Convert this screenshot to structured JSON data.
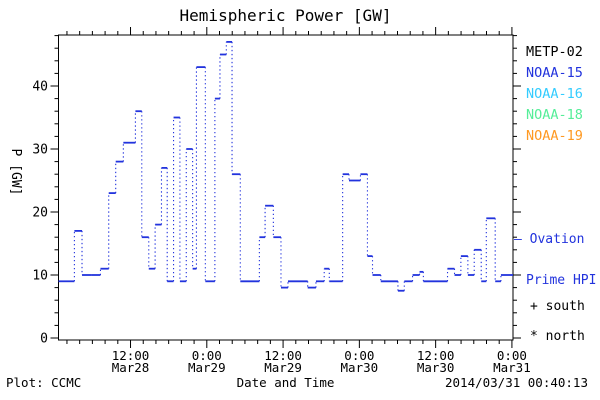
{
  "title": "Hemispheric Power [GW]",
  "axes": {
    "ylabel": "P [GW]",
    "xlabel": "Date and Time",
    "y_tick_values": [
      0,
      10,
      20,
      30,
      40
    ],
    "y_minor_step": 2,
    "y_range": [
      0,
      48
    ],
    "x_tick_labels": [
      {
        "h": 11.33,
        "time": "12:00",
        "date": "Mar28"
      },
      {
        "h": 23.33,
        "time": "0:00",
        "date": "Mar29"
      },
      {
        "h": 35.33,
        "time": "12:00",
        "date": "Mar29"
      },
      {
        "h": 47.33,
        "time": "0:00",
        "date": "Mar30"
      },
      {
        "h": 59.33,
        "time": "12:00",
        "date": "Mar30"
      },
      {
        "h": 71.33,
        "time": "0:00",
        "date": "Mar31"
      }
    ],
    "x_minor_step_hours": 2,
    "x_minor_start_hour": 1.33,
    "hours_span": 71.5
  },
  "legend": {
    "satellites": [
      {
        "label": "METP-02",
        "color": "#000000"
      },
      {
        "label": "NOAA-15",
        "color": "#2233dd"
      },
      {
        "label": "NOAA-16",
        "color": "#33ccff"
      },
      {
        "label": "NOAA-18",
        "color": "#55ee99"
      },
      {
        "label": "NOAA-19",
        "color": "#ff9922"
      }
    ],
    "ovation_line1": "— Ovation",
    "ovation_line2": "Prime HPI",
    "ovation_color": "#2233dd",
    "south_marker": "+ south",
    "north_marker": "* north"
  },
  "footer": {
    "credit": "Plot: CCMC",
    "timestamp": "2014/03/31 00:40:13"
  },
  "chart_data": {
    "type": "line",
    "subtype": "step-after",
    "title": "Hemispheric Power [GW]",
    "xlabel": "Date and Time",
    "ylabel": "P [GW]",
    "ylim": [
      0,
      48
    ],
    "series_name": "Ovation Prime HPI",
    "series_color": "#2233dd",
    "grid": false,
    "x_unit": "hours from start of window (Mar28 ~00:40)",
    "steps_hour_value": [
      [
        0.0,
        9
      ],
      [
        2.5,
        17
      ],
      [
        3.7,
        10
      ],
      [
        5.2,
        10
      ],
      [
        6.6,
        11
      ],
      [
        7.9,
        23
      ],
      [
        9.0,
        28
      ],
      [
        10.2,
        31
      ],
      [
        12.1,
        36
      ],
      [
        13.1,
        16
      ],
      [
        14.2,
        11
      ],
      [
        15.2,
        18
      ],
      [
        16.2,
        27
      ],
      [
        17.1,
        9
      ],
      [
        18.1,
        35
      ],
      [
        19.1,
        9
      ],
      [
        20.1,
        30
      ],
      [
        21.1,
        11
      ],
      [
        21.7,
        43
      ],
      [
        23.1,
        9
      ],
      [
        24.6,
        38
      ],
      [
        25.4,
        45
      ],
      [
        26.4,
        47
      ],
      [
        27.3,
        26
      ],
      [
        28.6,
        9
      ],
      [
        31.6,
        16
      ],
      [
        32.5,
        21
      ],
      [
        33.8,
        16
      ],
      [
        35.0,
        8
      ],
      [
        36.1,
        9
      ],
      [
        39.2,
        8
      ],
      [
        40.5,
        9
      ],
      [
        41.8,
        11
      ],
      [
        42.6,
        9
      ],
      [
        44.7,
        26
      ],
      [
        45.7,
        25
      ],
      [
        47.5,
        26
      ],
      [
        48.6,
        13
      ],
      [
        49.4,
        10
      ],
      [
        50.7,
        9
      ],
      [
        53.4,
        7.5
      ],
      [
        54.4,
        9
      ],
      [
        55.7,
        10
      ],
      [
        56.8,
        10.5
      ],
      [
        57.4,
        9
      ],
      [
        61.2,
        11
      ],
      [
        62.3,
        10
      ],
      [
        63.3,
        13
      ],
      [
        64.4,
        10
      ],
      [
        65.4,
        14
      ],
      [
        66.5,
        9
      ],
      [
        67.3,
        19
      ],
      [
        68.7,
        9
      ],
      [
        69.6,
        10
      ]
    ]
  }
}
